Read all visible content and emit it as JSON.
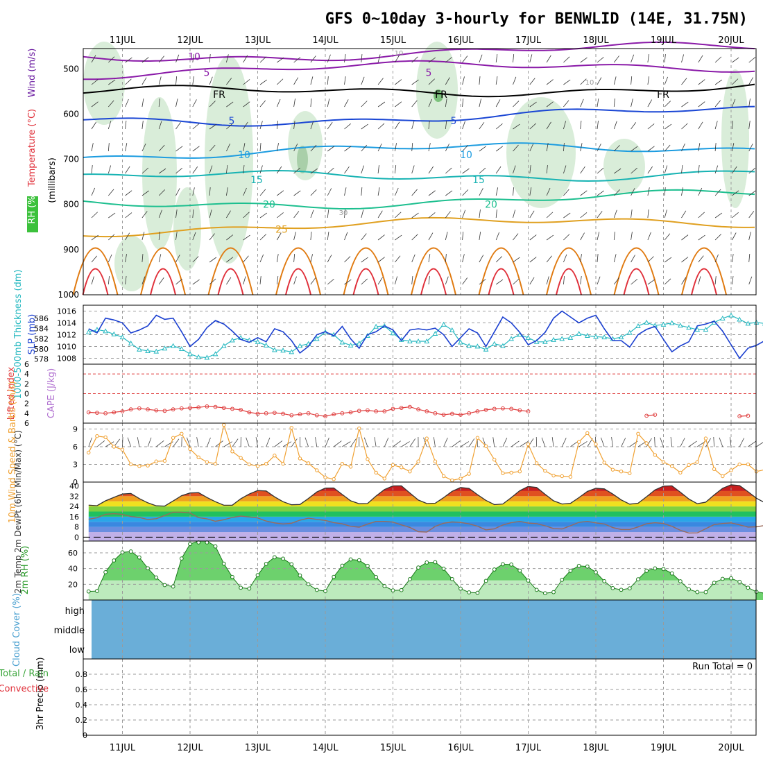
{
  "title": "GFS 0~10day 3-hourly for BENWLID (14E, 31.75N)",
  "day_labels": [
    "11JUL",
    "12JUL",
    "13JUL",
    "14JUL",
    "15JUL",
    "16JUL",
    "17JUL",
    "18JUL",
    "19JUL",
    "20JUL"
  ],
  "colors": {
    "purple": "#8a1aa8",
    "blue": "#1a46d4",
    "sky": "#1c9ce0",
    "teal": "#17b3b3",
    "green": "#1dbf8f",
    "orange": "#e0a020",
    "darkorange": "#e07a10",
    "red": "#e0303a",
    "rh_fill": "#cfe8cf",
    "cloud": "#6aaed8",
    "slp": "#1a3fd0",
    "thick": "#25b8c0",
    "li": "#e04040",
    "wind_speed": "#f0a030"
  },
  "chart_data": [
    {
      "type": "line",
      "panel": "upper-air",
      "ylabel_parts": [
        "RH (%)",
        "Temperature (°C)",
        "Wind (m/s)",
        "(millibars)"
      ],
      "y_ticks": [
        500,
        600,
        700,
        800,
        900,
        1000
      ],
      "ylim": [
        1000,
        455
      ],
      "series": [
        {
          "name": "5",
          "color": "purple",
          "mb": 473,
          "contour_labels": [
            "10"
          ]
        },
        {
          "name": "5",
          "color": "purple",
          "mb": 508,
          "contour_labels": [
            "5",
            "5"
          ]
        },
        {
          "name": "FR",
          "color": "black",
          "mb": 556,
          "contour_labels": [
            "FR",
            "FR",
            "FR"
          ]
        },
        {
          "name": "5",
          "color": "blue",
          "mb": 615,
          "contour_labels": [
            "5",
            "5"
          ]
        },
        {
          "name": "10",
          "color": "sky",
          "mb": 690,
          "contour_labels": [
            "10",
            "10"
          ]
        },
        {
          "name": "15",
          "color": "teal",
          "mb": 745,
          "contour_labels": [
            "15",
            "15"
          ]
        },
        {
          "name": "20",
          "color": "green",
          "mb": 800,
          "contour_labels": [
            "20",
            "20"
          ]
        },
        {
          "name": "25",
          "color": "orange",
          "mb": 855,
          "contour_labels": [
            "25"
          ]
        }
      ],
      "rh_contour_labels": [
        "10",
        "10",
        "30"
      ]
    },
    {
      "type": "line",
      "panel": "slp-thickness",
      "ylabel_left": "1000-500mb Thickness (dm)",
      "ylabel_right": "SLP (mb)",
      "left_ticks": [
        578,
        580,
        582,
        584,
        586
      ],
      "right_ticks": [
        1008,
        1010,
        1012,
        1014,
        1016
      ],
      "slp_lim": [
        1007,
        1017
      ],
      "thick_lim": [
        577,
        588.6
      ],
      "series": [
        {
          "name": "SLP (mb)",
          "color": "slp",
          "values": [
            1013.0,
            1012.3,
            1014.8,
            1014.5,
            1014.0,
            1012.3,
            1012.8,
            1013.5,
            1015.3,
            1014.6,
            1014.8,
            1012.5,
            1010.0,
            1011.2,
            1013.2,
            1014.4,
            1013.8,
            1012.6,
            1011.2,
            1010.7,
            1011.5,
            1010.8,
            1013.0,
            1012.5,
            1011.0,
            1008.9,
            1010.0,
            1012.0,
            1012.5,
            1011.8,
            1013.4,
            1011.3,
            1009.7,
            1012.0,
            1012.5,
            1013.5,
            1012.8,
            1011.0,
            1012.8,
            1013.0,
            1012.8,
            1013.1,
            1012.0,
            1010.0,
            1011.5,
            1013.0,
            1012.3,
            1010.0,
            1012.5,
            1015.0,
            1014.0,
            1012.4,
            1010.3,
            1011.0,
            1012.4,
            1014.8,
            1016.0,
            1015.0,
            1014.0,
            1014.8,
            1015.3,
            1013.0,
            1011.0,
            1011.0,
            1009.9,
            1012.0,
            1012.9,
            1013.4,
            1011.2,
            1009.1,
            1010.1,
            1010.8,
            1013.5,
            1013.8,
            1014.3,
            1012.6,
            1010.3,
            1008.0,
            1009.7,
            1010.2,
            1011.0
          ]
        },
        {
          "name": "Thickness (dm)",
          "color": "thick",
          "values": [
            583.3,
            583.8,
            583.5,
            582.9,
            582.3,
            581.1,
            579.9,
            579.6,
            579.5,
            580.1,
            580.6,
            580.0,
            579.0,
            578.4,
            578.3,
            579.0,
            580.6,
            581.7,
            582.2,
            581.7,
            581.4,
            580.7,
            579.8,
            579.7,
            579.4,
            580.6,
            581.0,
            582.0,
            583.3,
            582.8,
            581.3,
            580.7,
            581.1,
            582.6,
            584.4,
            584.5,
            583.1,
            581.8,
            581.5,
            581.5,
            581.5,
            583.0,
            584.8,
            583.7,
            581.3,
            580.6,
            580.5,
            579.9,
            581.0,
            580.6,
            582.0,
            582.8,
            582.2,
            581.4,
            581.4,
            581.8,
            582.0,
            582.2,
            583.0,
            582.6,
            582.4,
            582.3,
            582.0,
            582.3,
            583.2,
            584.5,
            585.2,
            584.6,
            584.8,
            585.1,
            584.6,
            584.2,
            583.8,
            583.8,
            585.2,
            586.0,
            586.6,
            585.8,
            585.0,
            585.2,
            585.0
          ]
        }
      ]
    },
    {
      "type": "line",
      "panel": "lifted-index",
      "ylabel_left": "Lifted Index",
      "ylabel_right": "CAPE (J/kg)",
      "y_ticks": [
        -6,
        -4,
        -2,
        0,
        2,
        4,
        6
      ],
      "y_tick_labels": [
        "6",
        "4",
        "2",
        "0",
        "2",
        "4",
        "6"
      ],
      "ylim": [
        -6,
        6
      ],
      "series": [
        {
          "name": "Lifted Index",
          "color": "li",
          "values": [
            3.8,
            3.9,
            4.0,
            3.8,
            3.6,
            3.2,
            3.0,
            3.2,
            3.4,
            3.5,
            3.2,
            3.0,
            2.9,
            2.8,
            2.6,
            2.7,
            2.9,
            3.1,
            3.3,
            3.8,
            4.1,
            4.0,
            3.9,
            4.1,
            4.4,
            4.2,
            4.0,
            4.4,
            4.6,
            4.2,
            4.0,
            3.8,
            3.5,
            3.4,
            3.6,
            3.6,
            3.1,
            2.9,
            2.7,
            3.2,
            3.6,
            4.0,
            4.3,
            4.1,
            4.3,
            4.0,
            3.6,
            3.3,
            3.1,
            3.0,
            3.1,
            3.4,
            3.6,
            null,
            null,
            null,
            null,
            null,
            null,
            null,
            null,
            null,
            null,
            null,
            null,
            null,
            4.5,
            4.3,
            null,
            null,
            null,
            null,
            null,
            null,
            null,
            null,
            null,
            4.6,
            4.5,
            null,
            null
          ]
        },
        {
          "name": "CAPE (J/kg)",
          "color": "purple",
          "values": []
        }
      ]
    },
    {
      "type": "line",
      "panel": "10m-wind",
      "ylabel": "10m Wind Speed & Barbs (m/s)",
      "y_ticks": [
        0,
        3,
        6,
        9
      ],
      "ylim": [
        0,
        10
      ],
      "series": [
        {
          "name": "Speed (m/s)",
          "color": "wind_speed",
          "values": [
            5.0,
            7.8,
            7.6,
            6.0,
            5.5,
            3.0,
            2.7,
            2.8,
            3.5,
            3.6,
            7.5,
            8.2,
            5.6,
            4.2,
            3.4,
            3.1,
            9.7,
            5.2,
            4.1,
            3.0,
            2.7,
            3.1,
            4.5,
            3.1,
            9.2,
            4.0,
            3.2,
            2.0,
            0.8,
            0.5,
            3.1,
            2.6,
            9.1,
            3.9,
            1.6,
            0.6,
            2.9,
            2.5,
            1.8,
            3.5,
            7.4,
            3.5,
            1.0,
            0.3,
            0.6,
            1.4,
            7.5,
            6.1,
            3.8,
            1.5,
            1.6,
            1.8,
            6.4,
            3.2,
            1.9,
            1.1,
            1.0,
            0.9,
            6.8,
            8.3,
            6.4,
            3.3,
            2.1,
            1.8,
            1.5,
            8.2,
            6.6,
            4.6,
            3.4,
            2.7,
            1.6,
            2.9,
            3.4,
            7.4,
            2.2,
            1.0,
            2.0,
            3.0,
            3.0,
            1.8,
            2.1
          ]
        }
      ]
    },
    {
      "type": "area",
      "panel": "2m-temp",
      "ylabel": "2m Temp 2m DewPt (6hr Min/Max) (°C)",
      "y_ticks": [
        0,
        8,
        16,
        24,
        32,
        40
      ],
      "y_tick_labels": [
        "0",
        "8",
        "16",
        "24",
        "32",
        "40"
      ],
      "ylim": [
        -3,
        43
      ],
      "series": [
        {
          "name": "2m Temp",
          "values": [
            25.0,
            24.6,
            28.4,
            31.1,
            33.7,
            34.1,
            30.1,
            26.8,
            24.5,
            24.3,
            28.3,
            32.4,
            34.5,
            34.8,
            31.0,
            27.7,
            24.9,
            25.0,
            30.0,
            33.7,
            36.4,
            36.1,
            31.5,
            27.7,
            25.3,
            25.5,
            30.2,
            35.3,
            38.3,
            38.4,
            33.3,
            28.4,
            26.1,
            26.3,
            32.1,
            37.2,
            40.0,
            40.1,
            34.5,
            29.0,
            26.3,
            26.5,
            30.9,
            35.8,
            38.8,
            38.1,
            33.2,
            28.7,
            25.4,
            25.9,
            30.9,
            36.3,
            39.6,
            38.8,
            33.5,
            28.4,
            25.9,
            26.4,
            30.9,
            35.7,
            38.2,
            37.7,
            33.7,
            29.1,
            25.8,
            26.5,
            31.6,
            36.9,
            39.8,
            40.1,
            35.1,
            29.8,
            26.1,
            27.3,
            33.0,
            38.2,
            40.9,
            40.3,
            35.5,
            30.4,
            26.8
          ]
        },
        {
          "name": "2m DewPt",
          "values": [
            14.0,
            15.2,
            17.9,
            18.3,
            17.8,
            16.1,
            15.4,
            13.8,
            14.4,
            16.9,
            19.5,
            19.5,
            18.9,
            15.3,
            14.3,
            12.4,
            13.6,
            15.4,
            16.5,
            15.8,
            15.0,
            12.6,
            11.2,
            10.3,
            10.9,
            13.3,
            14.8,
            13.9,
            13.1,
            11.4,
            10.4,
            8.5,
            7.8,
            10.2,
            12.3,
            12.3,
            11.8,
            9.6,
            7.6,
            4.3,
            4.0,
            8.4,
            10.9,
            11.9,
            11.5,
            10.4,
            8.6,
            5.7,
            6.5,
            9.5,
            11.4,
            12.3,
            11.0,
            10.6,
            8.9,
            6.7,
            6.4,
            8.9,
            11.6,
            12.3,
            11.2,
            10.3,
            7.5,
            6.0,
            6.0,
            8.0,
            10.5,
            11.3,
            10.7,
            8.5,
            5.4,
            3.3,
            3.4,
            6.6,
            9.8,
            10.7,
            11.2,
            9.6,
            7.9,
            8.1,
            9.2
          ]
        }
      ]
    },
    {
      "type": "area",
      "panel": "2m-rh",
      "ylabel": "2m RH (%)",
      "y_ticks": [
        20,
        40,
        60
      ],
      "ylim": [
        0,
        75
      ],
      "series": [
        {
          "name": "2m RH",
          "values": [
            10.9,
            11.4,
            35.4,
            50.3,
            60.6,
            61.7,
            54.1,
            40.4,
            28.6,
            19.0,
            17.1,
            52.8,
            71.2,
            76.7,
            77.2,
            68.2,
            46.2,
            29.3,
            15.6,
            14.5,
            31.6,
            45.9,
            54.4,
            52.6,
            45.4,
            31.2,
            20.0,
            12.8,
            11.4,
            29.4,
            43.6,
            51.6,
            50.6,
            43.4,
            29.2,
            17.6,
            12.2,
            12.6,
            26.4,
            41.3,
            47.7,
            48.1,
            39.8,
            26.6,
            14.4,
            9.7,
            9.1,
            24.3,
            38.8,
            45.5,
            45.1,
            37.4,
            24.7,
            12.9,
            8.6,
            10.0,
            25.7,
            37.2,
            43.4,
            42.6,
            35.3,
            23.9,
            15.1,
            13.0,
            14.8,
            26.3,
            37.1,
            40.2,
            39.4,
            33.8,
            23.8,
            13.6,
            10.1,
            10.0,
            21.9,
            26.9,
            27.6,
            23.1,
            15.6,
            10.4,
            8.6
          ]
        }
      ]
    },
    {
      "type": "area",
      "panel": "cloud-cover",
      "ylabel": "Cloud Cover (%)",
      "levels": [
        "high",
        "middle",
        "low"
      ],
      "color": "cloud"
    },
    {
      "type": "line",
      "panel": "precip",
      "ylabel": "3hr Precip (mm)",
      "left_labels": [
        "Total / Rain",
        "Convective"
      ],
      "y_ticks": [
        0,
        0.2,
        0.4,
        0.6,
        0.8
      ],
      "y_tick_labels": [
        "0",
        "0.2",
        "0.4",
        "0.6",
        "0.8"
      ],
      "ylim": [
        0,
        1.0
      ],
      "run_total_text": "Run Total = 0",
      "series": [
        {
          "name": "Total / Rain",
          "values": []
        }
      ]
    }
  ]
}
